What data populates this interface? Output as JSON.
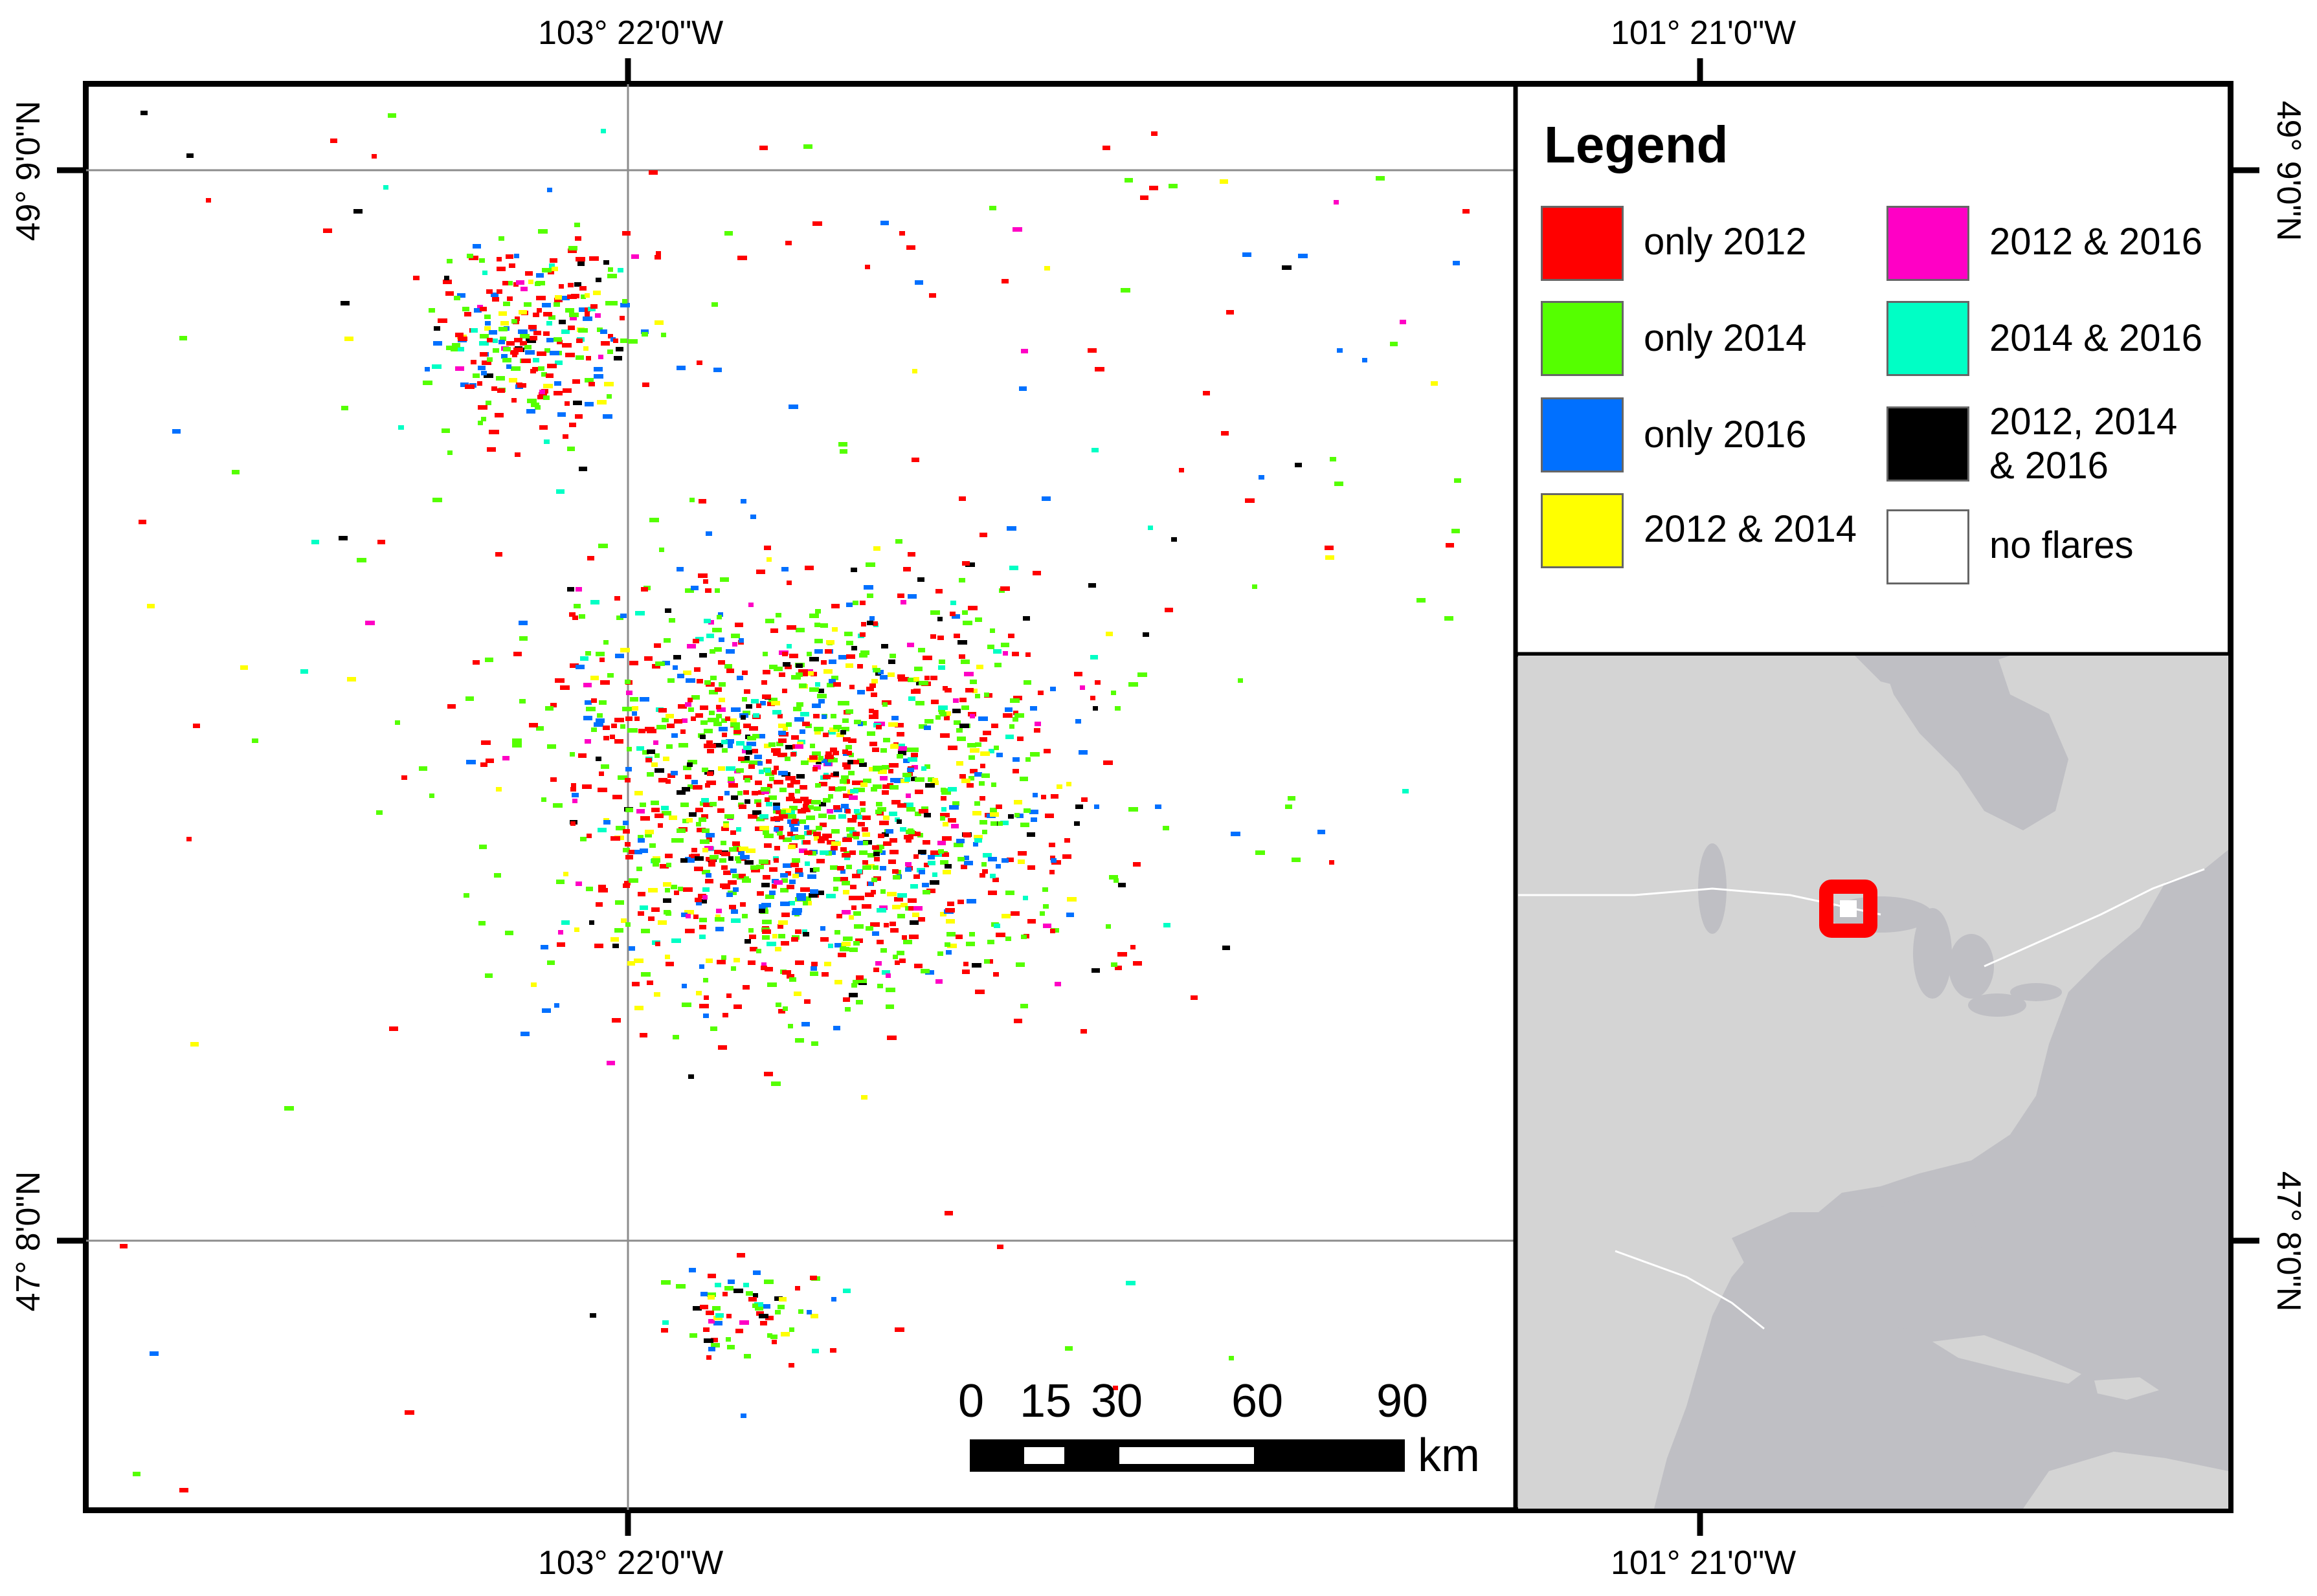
{
  "coordinates": {
    "top_left": "103° 22'0\"W",
    "top_right": "101° 21'0\"W",
    "bottom_left": "103° 22'0\"W",
    "bottom_right": "101° 21'0\"W",
    "left_upper": "49° 9'0\"N",
    "left_lower": "47° 8'0\"N",
    "right_upper": "49° 9'0\"N",
    "right_lower": "47° 8'0\"N"
  },
  "legend": {
    "title": "Legend",
    "items": [
      {
        "label": "only 2012",
        "color": "#ff0000"
      },
      {
        "label": "only 2014",
        "color": "#55ff00"
      },
      {
        "label": "only 2016",
        "color": "#0070ff"
      },
      {
        "label": "2012 & 2014",
        "color": "#ffff00"
      },
      {
        "label": "2012 & 2016",
        "color": "#ff00c5"
      },
      {
        "label": "2014 & 2016",
        "color": "#00ffc5"
      },
      {
        "label": "2012, 2014 & 2016",
        "label_line1": "2012, 2014",
        "label_line2": "& 2016",
        "color": "#000000"
      },
      {
        "label": "no flares",
        "color": "#ffffff"
      }
    ]
  },
  "scale_bar": {
    "ticks": [
      "0",
      "15",
      "30",
      "60",
      "90"
    ],
    "unit": "km"
  },
  "inset": {
    "land_color": "#d4d4d4",
    "water_color": "#bfbfc4",
    "locator_color": "#ff0000"
  }
}
